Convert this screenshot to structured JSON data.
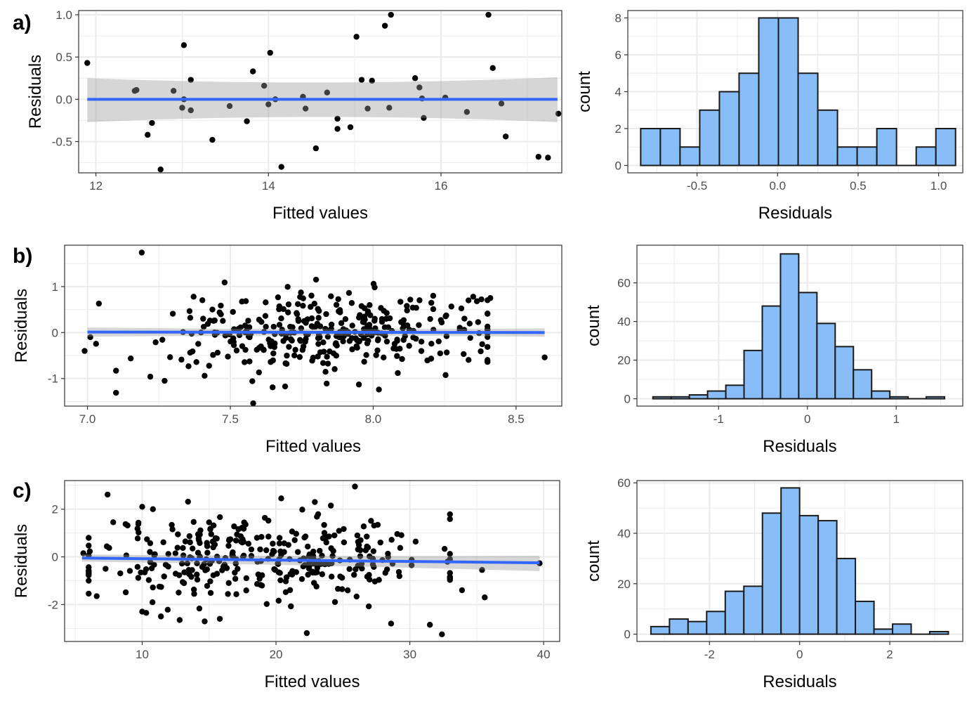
{
  "colors": {
    "point": "#000000",
    "smooth_line": "#3366FF",
    "ci_band": "#999999",
    "bar_fill": "#88BDF7",
    "bar_edge": "#1a1a1a",
    "grid": "#ebebeb",
    "panel_border": "#333333"
  },
  "chart_data": [
    {
      "type": "scatter",
      "tag": "a)",
      "xlabel": "Fitted values",
      "ylabel": "Residuals",
      "xticks": [
        12,
        14,
        16
      ],
      "yticks": [
        -0.5,
        0.0,
        0.5,
        1.0
      ],
      "ytick_labels": [
        "-0.5",
        "0.0",
        "0.5",
        "1.0"
      ],
      "xlim": [
        11.8,
        17.4
      ],
      "ylim": [
        -0.87,
        1.05
      ],
      "smooth": {
        "x": [
          11.9,
          17.35
        ],
        "y": [
          0.0,
          0.0
        ],
        "band_lower": [
          -0.27,
          -0.27
        ],
        "band_upper": [
          0.25,
          0.26
        ]
      },
      "points": [
        [
          11.9,
          0.43
        ],
        [
          12.45,
          0.1
        ],
        [
          12.47,
          0.11
        ],
        [
          12.6,
          -0.42
        ],
        [
          12.65,
          -0.28
        ],
        [
          12.75,
          -0.83
        ],
        [
          12.9,
          0.1
        ],
        [
          13.0,
          -0.1
        ],
        [
          13.02,
          0.0
        ],
        [
          13.02,
          0.64
        ],
        [
          13.1,
          0.23
        ],
        [
          13.1,
          -0.13
        ],
        [
          13.35,
          -0.48
        ],
        [
          13.55,
          -0.08
        ],
        [
          13.75,
          -0.26
        ],
        [
          13.82,
          0.33
        ],
        [
          13.95,
          0.16
        ],
        [
          14.0,
          -0.06
        ],
        [
          14.02,
          0.55
        ],
        [
          14.08,
          0.0
        ],
        [
          14.15,
          -0.8
        ],
        [
          14.4,
          0.03
        ],
        [
          14.43,
          -0.11
        ],
        [
          14.55,
          -0.58
        ],
        [
          14.68,
          0.08
        ],
        [
          14.8,
          -0.23
        ],
        [
          14.8,
          -0.35
        ],
        [
          14.95,
          -0.33
        ],
        [
          15.02,
          0.74
        ],
        [
          15.08,
          0.23
        ],
        [
          15.15,
          -0.11
        ],
        [
          15.2,
          0.22
        ],
        [
          15.35,
          0.87
        ],
        [
          15.4,
          -0.1
        ],
        [
          15.42,
          1.0
        ],
        [
          15.7,
          0.25
        ],
        [
          15.75,
          0.14
        ],
        [
          15.78,
          0.01
        ],
        [
          15.8,
          -0.22
        ],
        [
          16.05,
          0.02
        ],
        [
          16.3,
          -0.15
        ],
        [
          16.55,
          1.0
        ],
        [
          16.6,
          0.37
        ],
        [
          16.7,
          -0.05
        ],
        [
          16.75,
          -0.44
        ],
        [
          17.13,
          -0.68
        ],
        [
          17.24,
          -0.69
        ],
        [
          17.36,
          -0.17
        ]
      ]
    },
    {
      "type": "bar",
      "subtype": "histogram",
      "xlabel": "Residuals",
      "ylabel": "count",
      "xticks": [
        -0.5,
        0.0,
        0.5,
        1.0
      ],
      "xtick_labels": [
        "-0.5",
        "0.0",
        "0.5",
        "1.0"
      ],
      "yticks": [
        0,
        2,
        4,
        6,
        8
      ],
      "xlim": [
        -0.93,
        1.15
      ],
      "ylim": [
        -0.4,
        8.4
      ],
      "bin_start": -0.85,
      "bin_width": 0.1222,
      "counts": [
        2,
        2,
        1,
        3,
        4,
        5,
        8,
        8,
        5,
        3,
        1,
        1,
        2,
        0,
        1,
        2
      ]
    },
    {
      "type": "scatter",
      "tag": "b)",
      "xlabel": "Fitted values",
      "ylabel": "Residuals",
      "xticks": [
        7.0,
        7.5,
        8.0,
        8.5
      ],
      "xtick_labels": [
        "7.0",
        "7.5",
        "8.0",
        "8.5"
      ],
      "yticks": [
        -1,
        0,
        1
      ],
      "xlim": [
        6.92,
        8.66
      ],
      "ylim": [
        -1.6,
        1.9
      ],
      "smooth": {
        "x": [
          7.0,
          8.6
        ],
        "y": [
          0.01,
          0.0
        ],
        "band_lower": [
          -0.09,
          -0.09
        ],
        "band_upper": [
          0.11,
          0.09
        ]
      },
      "cloud": {
        "n": 340,
        "x_min": 7.03,
        "x_max": 8.4,
        "x_center": 7.85,
        "x_sd": 0.28,
        "y_sd": 0.42,
        "seed": 7
      },
      "outliers": [
        [
          6.99,
          -0.4
        ],
        [
          7.01,
          -0.1
        ],
        [
          7.04,
          0.63
        ],
        [
          7.1,
          -1.31
        ],
        [
          7.1,
          -0.83
        ],
        [
          7.19,
          1.74
        ],
        [
          7.22,
          -0.96
        ],
        [
          7.27,
          -1.05
        ],
        [
          7.41,
          -0.94
        ],
        [
          7.48,
          1.09
        ],
        [
          7.58,
          -1.54
        ],
        [
          7.8,
          1.15
        ],
        [
          7.95,
          -1.13
        ],
        [
          8.02,
          -1.24
        ],
        [
          8.21,
          0.8
        ],
        [
          8.35,
          0.78
        ],
        [
          8.41,
          0.75
        ],
        [
          8.6,
          -0.54
        ]
      ]
    },
    {
      "type": "bar",
      "subtype": "histogram",
      "xlabel": "Residuals",
      "ylabel": "count",
      "xticks": [
        -1,
        0,
        1
      ],
      "yticks": [
        0,
        20,
        40,
        60
      ],
      "xlim": [
        -1.92,
        1.75
      ],
      "ylim": [
        -3.8,
        79.5
      ],
      "bin_start": -1.74,
      "bin_width": 0.2053,
      "counts": [
        1,
        1,
        2,
        4,
        7,
        25,
        48,
        75,
        55,
        39,
        27,
        15,
        4,
        1,
        0,
        1
      ]
    },
    {
      "type": "scatter",
      "tag": "c)",
      "xlabel": "Fitted values",
      "ylabel": "Residuals",
      "xticks": [
        10,
        20,
        30,
        40
      ],
      "yticks": [
        -2,
        0,
        2
      ],
      "xlim": [
        4.2,
        41.2
      ],
      "ylim": [
        -3.55,
        3.2
      ],
      "smooth": {
        "x": [
          5.5,
          39.7
        ],
        "y": [
          -0.05,
          -0.25
        ],
        "band_lower": [
          -0.2,
          -0.6
        ],
        "band_upper": [
          0.1,
          0.05
        ]
      },
      "cloud": {
        "n": 345,
        "x_min": 6.0,
        "x_max": 33.0,
        "x_center": 19.0,
        "x_sd": 6.5,
        "y_sd": 0.9,
        "seed": 11
      },
      "outliers": [
        [
          5.6,
          0.15
        ],
        [
          6.6,
          -1.65
        ],
        [
          10.0,
          2.1
        ],
        [
          10.8,
          2.0
        ],
        [
          10.0,
          -2.3
        ],
        [
          10.3,
          -2.35
        ],
        [
          11.4,
          -2.5
        ],
        [
          12.8,
          -2.65
        ],
        [
          15.8,
          -2.6
        ],
        [
          22.3,
          -3.2
        ],
        [
          22.9,
          2.3
        ],
        [
          24.1,
          2.15
        ],
        [
          25.9,
          2.95
        ],
        [
          28.6,
          -2.8
        ],
        [
          31.5,
          -2.85
        ],
        [
          32.4,
          -3.25
        ],
        [
          33.9,
          -1.4
        ],
        [
          35.4,
          -0.55
        ],
        [
          35.6,
          -1.7
        ],
        [
          39.7,
          -0.27
        ]
      ]
    },
    {
      "type": "bar",
      "subtype": "histogram",
      "xlabel": "Residuals",
      "ylabel": "count",
      "xticks": [
        -2,
        0,
        2
      ],
      "yticks": [
        0,
        20,
        40,
        60
      ],
      "xlim": [
        -3.61,
        3.62
      ],
      "ylim": [
        -2.9,
        60.9
      ],
      "bin_start": -3.3,
      "bin_width": 0.4125,
      "counts": [
        3,
        6,
        5,
        9,
        17,
        19,
        48,
        58,
        47,
        45,
        30,
        13,
        2,
        4,
        0,
        1
      ]
    }
  ]
}
